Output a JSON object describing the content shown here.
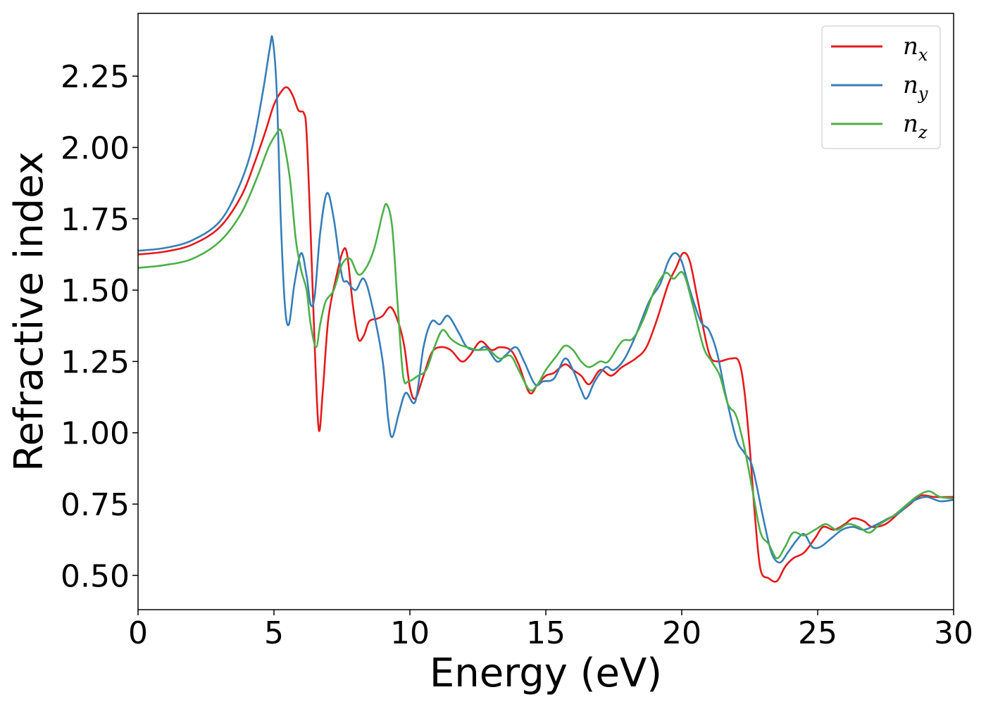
{
  "chart_data": {
    "type": "line",
    "xlabel": "Energy (eV)",
    "ylabel": "Refractive index",
    "xlim": [
      0,
      30
    ],
    "ylim": [
      0.38,
      2.47
    ],
    "xticks": [
      0,
      5,
      10,
      15,
      20,
      25,
      30
    ],
    "xtick_labels": [
      "0",
      "5",
      "10",
      "15",
      "20",
      "25",
      "30"
    ],
    "yticks": [
      0.5,
      0.75,
      1.0,
      1.25,
      1.5,
      1.75,
      2.0,
      2.25
    ],
    "ytick_labels": [
      "0.50",
      "0.75",
      "1.00",
      "1.25",
      "1.50",
      "1.75",
      "2.00",
      "2.25"
    ],
    "grid": false,
    "legend_position": "top-right",
    "series": [
      {
        "name": "n",
        "subscript": "x",
        "color": "#e41a1c",
        "points": [
          [
            0,
            1.625
          ],
          [
            1,
            1.635
          ],
          [
            2,
            1.66
          ],
          [
            3,
            1.72
          ],
          [
            3.8,
            1.83
          ],
          [
            4.3,
            1.95
          ],
          [
            4.7,
            2.06
          ],
          [
            5.0,
            2.15
          ],
          [
            5.3,
            2.2
          ],
          [
            5.5,
            2.21
          ],
          [
            5.7,
            2.18
          ],
          [
            5.9,
            2.13
          ],
          [
            6.1,
            2.12
          ],
          [
            6.2,
            2.05
          ],
          [
            6.35,
            1.7
          ],
          [
            6.5,
            1.3
          ],
          [
            6.65,
            1.01
          ],
          [
            6.8,
            1.15
          ],
          [
            7.0,
            1.4
          ],
          [
            7.3,
            1.55
          ],
          [
            7.55,
            1.64
          ],
          [
            7.7,
            1.62
          ],
          [
            7.9,
            1.45
          ],
          [
            8.1,
            1.33
          ],
          [
            8.3,
            1.34
          ],
          [
            8.5,
            1.39
          ],
          [
            8.8,
            1.4
          ],
          [
            9.0,
            1.41
          ],
          [
            9.3,
            1.44
          ],
          [
            9.6,
            1.38
          ],
          [
            9.8,
            1.3
          ],
          [
            10.0,
            1.16
          ],
          [
            10.2,
            1.12
          ],
          [
            10.5,
            1.2
          ],
          [
            10.8,
            1.28
          ],
          [
            11.1,
            1.3
          ],
          [
            11.5,
            1.29
          ],
          [
            11.9,
            1.25
          ],
          [
            12.2,
            1.27
          ],
          [
            12.6,
            1.32
          ],
          [
            13.0,
            1.29
          ],
          [
            13.3,
            1.3
          ],
          [
            13.7,
            1.29
          ],
          [
            14.0,
            1.24
          ],
          [
            14.4,
            1.14
          ],
          [
            14.7,
            1.17
          ],
          [
            15.0,
            1.2
          ],
          [
            15.3,
            1.21
          ],
          [
            15.7,
            1.24
          ],
          [
            16.0,
            1.22
          ],
          [
            16.3,
            1.2
          ],
          [
            16.6,
            1.17
          ],
          [
            17.0,
            1.22
          ],
          [
            17.4,
            1.2
          ],
          [
            17.8,
            1.23
          ],
          [
            18.3,
            1.26
          ],
          [
            18.7,
            1.3
          ],
          [
            19.1,
            1.4
          ],
          [
            19.5,
            1.52
          ],
          [
            19.8,
            1.58
          ],
          [
            20.05,
            1.63
          ],
          [
            20.3,
            1.6
          ],
          [
            20.6,
            1.46
          ],
          [
            21.0,
            1.28
          ],
          [
            21.3,
            1.25
          ],
          [
            21.8,
            1.26
          ],
          [
            22.1,
            1.25
          ],
          [
            22.3,
            1.15
          ],
          [
            22.5,
            0.95
          ],
          [
            22.7,
            0.7
          ],
          [
            22.9,
            0.52
          ],
          [
            23.2,
            0.49
          ],
          [
            23.5,
            0.48
          ],
          [
            23.8,
            0.53
          ],
          [
            24.1,
            0.56
          ],
          [
            24.5,
            0.58
          ],
          [
            24.9,
            0.63
          ],
          [
            25.2,
            0.67
          ],
          [
            25.6,
            0.66
          ],
          [
            26.0,
            0.68
          ],
          [
            26.3,
            0.7
          ],
          [
            26.7,
            0.69
          ],
          [
            27.0,
            0.67
          ],
          [
            27.5,
            0.68
          ],
          [
            28.0,
            0.72
          ],
          [
            28.4,
            0.75
          ],
          [
            28.8,
            0.78
          ],
          [
            29.3,
            0.775
          ],
          [
            30,
            0.775
          ]
        ]
      },
      {
        "name": "n",
        "subscript": "y",
        "color": "#377eb8",
        "points": [
          [
            0,
            1.638
          ],
          [
            1,
            1.648
          ],
          [
            2,
            1.675
          ],
          [
            3,
            1.74
          ],
          [
            3.7,
            1.86
          ],
          [
            4.2,
            2.0
          ],
          [
            4.6,
            2.2
          ],
          [
            4.85,
            2.35
          ],
          [
            4.95,
            2.38
          ],
          [
            5.1,
            2.2
          ],
          [
            5.25,
            1.75
          ],
          [
            5.4,
            1.45
          ],
          [
            5.55,
            1.38
          ],
          [
            5.75,
            1.52
          ],
          [
            6.0,
            1.63
          ],
          [
            6.2,
            1.55
          ],
          [
            6.35,
            1.45
          ],
          [
            6.5,
            1.48
          ],
          [
            6.7,
            1.7
          ],
          [
            6.95,
            1.84
          ],
          [
            7.2,
            1.75
          ],
          [
            7.5,
            1.55
          ],
          [
            7.7,
            1.53
          ],
          [
            8.0,
            1.5
          ],
          [
            8.3,
            1.54
          ],
          [
            8.6,
            1.45
          ],
          [
            9.0,
            1.25
          ],
          [
            9.2,
            1.05
          ],
          [
            9.35,
            0.985
          ],
          [
            9.6,
            1.07
          ],
          [
            9.85,
            1.14
          ],
          [
            10.2,
            1.11
          ],
          [
            10.5,
            1.3
          ],
          [
            10.8,
            1.39
          ],
          [
            11.1,
            1.38
          ],
          [
            11.4,
            1.41
          ],
          [
            11.8,
            1.35
          ],
          [
            12.1,
            1.3
          ],
          [
            12.5,
            1.29
          ],
          [
            12.8,
            1.3
          ],
          [
            13.2,
            1.25
          ],
          [
            13.5,
            1.27
          ],
          [
            13.9,
            1.3
          ],
          [
            14.2,
            1.25
          ],
          [
            14.6,
            1.17
          ],
          [
            14.9,
            1.18
          ],
          [
            15.3,
            1.19
          ],
          [
            15.7,
            1.26
          ],
          [
            16.0,
            1.22
          ],
          [
            16.3,
            1.15
          ],
          [
            16.5,
            1.12
          ],
          [
            16.8,
            1.18
          ],
          [
            17.2,
            1.23
          ],
          [
            17.5,
            1.22
          ],
          [
            17.9,
            1.26
          ],
          [
            18.3,
            1.34
          ],
          [
            18.8,
            1.46
          ],
          [
            19.2,
            1.52
          ],
          [
            19.5,
            1.6
          ],
          [
            19.75,
            1.63
          ],
          [
            20.0,
            1.6
          ],
          [
            20.3,
            1.5
          ],
          [
            20.7,
            1.39
          ],
          [
            21.0,
            1.36
          ],
          [
            21.3,
            1.28
          ],
          [
            21.6,
            1.14
          ],
          [
            22.0,
            0.98
          ],
          [
            22.3,
            0.93
          ],
          [
            22.6,
            0.88
          ],
          [
            23.0,
            0.7
          ],
          [
            23.3,
            0.58
          ],
          [
            23.6,
            0.545
          ],
          [
            23.9,
            0.58
          ],
          [
            24.2,
            0.62
          ],
          [
            24.5,
            0.645
          ],
          [
            24.8,
            0.6
          ],
          [
            25.1,
            0.6
          ],
          [
            25.5,
            0.63
          ],
          [
            25.9,
            0.66
          ],
          [
            26.3,
            0.67
          ],
          [
            26.7,
            0.66
          ],
          [
            27.2,
            0.68
          ],
          [
            27.6,
            0.7
          ],
          [
            28.0,
            0.72
          ],
          [
            28.5,
            0.76
          ],
          [
            29.0,
            0.775
          ],
          [
            29.5,
            0.76
          ],
          [
            30,
            0.765
          ]
        ]
      },
      {
        "name": "n",
        "subscript": "z",
        "color": "#4daf4a",
        "points": [
          [
            0,
            1.578
          ],
          [
            1,
            1.588
          ],
          [
            2,
            1.61
          ],
          [
            3,
            1.67
          ],
          [
            3.8,
            1.77
          ],
          [
            4.4,
            1.9
          ],
          [
            4.8,
            2.0
          ],
          [
            5.1,
            2.05
          ],
          [
            5.25,
            2.06
          ],
          [
            5.4,
            2.0
          ],
          [
            5.6,
            1.88
          ],
          [
            5.8,
            1.68
          ],
          [
            6.0,
            1.57
          ],
          [
            6.2,
            1.5
          ],
          [
            6.35,
            1.38
          ],
          [
            6.55,
            1.3
          ],
          [
            6.7,
            1.38
          ],
          [
            6.9,
            1.46
          ],
          [
            7.2,
            1.5
          ],
          [
            7.5,
            1.59
          ],
          [
            7.8,
            1.61
          ],
          [
            8.1,
            1.555
          ],
          [
            8.4,
            1.58
          ],
          [
            8.7,
            1.65
          ],
          [
            9.0,
            1.77
          ],
          [
            9.15,
            1.8
          ],
          [
            9.35,
            1.72
          ],
          [
            9.55,
            1.45
          ],
          [
            9.75,
            1.2
          ],
          [
            9.95,
            1.18
          ],
          [
            10.3,
            1.2
          ],
          [
            10.6,
            1.22
          ],
          [
            10.9,
            1.3
          ],
          [
            11.2,
            1.36
          ],
          [
            11.5,
            1.33
          ],
          [
            11.8,
            1.31
          ],
          [
            12.1,
            1.3
          ],
          [
            12.5,
            1.29
          ],
          [
            12.9,
            1.29
          ],
          [
            13.3,
            1.26
          ],
          [
            13.7,
            1.27
          ],
          [
            14.0,
            1.22
          ],
          [
            14.4,
            1.15
          ],
          [
            14.7,
            1.17
          ],
          [
            15.0,
            1.22
          ],
          [
            15.4,
            1.27
          ],
          [
            15.7,
            1.305
          ],
          [
            16.0,
            1.29
          ],
          [
            16.3,
            1.25
          ],
          [
            16.6,
            1.23
          ],
          [
            17.0,
            1.25
          ],
          [
            17.3,
            1.25
          ],
          [
            17.8,
            1.32
          ],
          [
            18.2,
            1.33
          ],
          [
            18.6,
            1.4
          ],
          [
            19.0,
            1.5
          ],
          [
            19.4,
            1.56
          ],
          [
            19.7,
            1.54
          ],
          [
            20.05,
            1.56
          ],
          [
            20.4,
            1.45
          ],
          [
            20.8,
            1.3
          ],
          [
            21.1,
            1.25
          ],
          [
            21.4,
            1.2
          ],
          [
            21.7,
            1.1
          ],
          [
            22.0,
            1.06
          ],
          [
            22.3,
            0.95
          ],
          [
            22.6,
            0.8
          ],
          [
            22.9,
            0.65
          ],
          [
            23.2,
            0.61
          ],
          [
            23.5,
            0.56
          ],
          [
            23.8,
            0.6
          ],
          [
            24.1,
            0.65
          ],
          [
            24.5,
            0.64
          ],
          [
            24.9,
            0.66
          ],
          [
            25.3,
            0.68
          ],
          [
            25.7,
            0.66
          ],
          [
            26.1,
            0.68
          ],
          [
            26.5,
            0.67
          ],
          [
            26.9,
            0.65
          ],
          [
            27.3,
            0.68
          ],
          [
            27.8,
            0.71
          ],
          [
            28.3,
            0.75
          ],
          [
            28.7,
            0.78
          ],
          [
            29.1,
            0.795
          ],
          [
            29.5,
            0.775
          ],
          [
            30,
            0.77
          ]
        ]
      }
    ]
  }
}
